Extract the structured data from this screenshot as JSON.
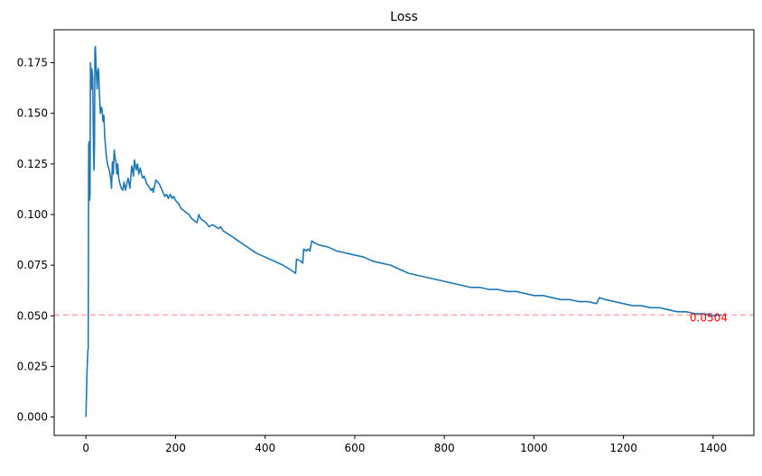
{
  "chart_data": {
    "type": "line",
    "title": "Loss",
    "xlabel": "",
    "ylabel": "",
    "xlim": [
      -71,
      1491
    ],
    "ylim": [
      -0.0091,
      0.1913
    ],
    "x_ticks": [
      0,
      200,
      400,
      600,
      800,
      1000,
      1200,
      1400
    ],
    "y_ticks": [
      0.0,
      0.025,
      0.05,
      0.075,
      0.1,
      0.125,
      0.15,
      0.175
    ],
    "grid": false,
    "legend": "none",
    "series": [
      {
        "color": "#1f77b4",
        "points": [
          [
            0,
            0.0
          ],
          [
            2,
            0.02
          ],
          [
            4,
            0.032
          ],
          [
            5,
            0.034
          ],
          [
            6,
            0.134
          ],
          [
            7,
            0.136
          ],
          [
            8,
            0.107
          ],
          [
            9,
            0.11
          ],
          [
            10,
            0.175
          ],
          [
            12,
            0.162
          ],
          [
            13,
            0.172
          ],
          [
            15,
            0.168
          ],
          [
            17,
            0.13
          ],
          [
            18,
            0.122
          ],
          [
            19,
            0.135
          ],
          [
            20,
            0.182
          ],
          [
            21,
            0.183
          ],
          [
            23,
            0.171
          ],
          [
            25,
            0.162
          ],
          [
            26,
            0.17
          ],
          [
            28,
            0.172
          ],
          [
            30,
            0.16
          ],
          [
            32,
            0.15
          ],
          [
            34,
            0.153
          ],
          [
            36,
            0.152
          ],
          [
            38,
            0.146
          ],
          [
            40,
            0.149
          ],
          [
            42,
            0.138
          ],
          [
            45,
            0.13
          ],
          [
            48,
            0.125
          ],
          [
            52,
            0.122
          ],
          [
            55,
            0.118
          ],
          [
            57,
            0.113
          ],
          [
            59,
            0.126
          ],
          [
            61,
            0.12
          ],
          [
            63,
            0.132
          ],
          [
            65,
            0.128
          ],
          [
            67,
            0.126
          ],
          [
            69,
            0.12
          ],
          [
            71,
            0.125
          ],
          [
            73,
            0.118
          ],
          [
            76,
            0.115
          ],
          [
            79,
            0.113
          ],
          [
            82,
            0.112
          ],
          [
            85,
            0.116
          ],
          [
            88,
            0.112
          ],
          [
            91,
            0.115
          ],
          [
            94,
            0.118
          ],
          [
            96,
            0.116
          ],
          [
            98,
            0.113
          ],
          [
            100,
            0.118
          ],
          [
            102,
            0.124
          ],
          [
            104,
            0.122
          ],
          [
            106,
            0.119
          ],
          [
            108,
            0.127
          ],
          [
            110,
            0.125
          ],
          [
            112,
            0.122
          ],
          [
            115,
            0.125
          ],
          [
            118,
            0.12
          ],
          [
            121,
            0.123
          ],
          [
            124,
            0.12
          ],
          [
            127,
            0.118
          ],
          [
            130,
            0.119
          ],
          [
            133,
            0.117
          ],
          [
            136,
            0.115
          ],
          [
            140,
            0.114
          ],
          [
            145,
            0.112
          ],
          [
            148,
            0.113
          ],
          [
            150,
            0.111
          ],
          [
            153,
            0.114
          ],
          [
            156,
            0.117
          ],
          [
            160,
            0.116
          ],
          [
            164,
            0.115
          ],
          [
            168,
            0.113
          ],
          [
            172,
            0.111
          ],
          [
            176,
            0.109
          ],
          [
            180,
            0.11
          ],
          [
            184,
            0.108
          ],
          [
            188,
            0.11
          ],
          [
            192,
            0.108
          ],
          [
            196,
            0.109
          ],
          [
            200,
            0.107
          ],
          [
            204,
            0.106
          ],
          [
            208,
            0.105
          ],
          [
            212,
            0.103
          ],
          [
            218,
            0.102
          ],
          [
            224,
            0.101
          ],
          [
            230,
            0.1
          ],
          [
            236,
            0.098
          ],
          [
            242,
            0.097
          ],
          [
            248,
            0.096
          ],
          [
            252,
            0.1
          ],
          [
            256,
            0.098
          ],
          [
            262,
            0.097
          ],
          [
            268,
            0.096
          ],
          [
            275,
            0.094
          ],
          [
            282,
            0.095
          ],
          [
            290,
            0.094
          ],
          [
            296,
            0.093
          ],
          [
            300,
            0.094
          ],
          [
            306,
            0.092
          ],
          [
            320,
            0.09
          ],
          [
            340,
            0.087
          ],
          [
            360,
            0.084
          ],
          [
            380,
            0.081
          ],
          [
            400,
            0.079
          ],
          [
            420,
            0.077
          ],
          [
            440,
            0.075
          ],
          [
            455,
            0.073
          ],
          [
            468,
            0.071
          ],
          [
            470,
            0.078
          ],
          [
            480,
            0.077
          ],
          [
            484,
            0.076
          ],
          [
            486,
            0.083
          ],
          [
            492,
            0.082
          ],
          [
            496,
            0.083
          ],
          [
            500,
            0.082
          ],
          [
            504,
            0.087
          ],
          [
            510,
            0.086
          ],
          [
            520,
            0.085
          ],
          [
            540,
            0.084
          ],
          [
            560,
            0.082
          ],
          [
            580,
            0.081
          ],
          [
            600,
            0.08
          ],
          [
            620,
            0.079
          ],
          [
            640,
            0.077
          ],
          [
            660,
            0.076
          ],
          [
            680,
            0.075
          ],
          [
            700,
            0.073
          ],
          [
            720,
            0.071
          ],
          [
            740,
            0.07
          ],
          [
            760,
            0.069
          ],
          [
            780,
            0.068
          ],
          [
            800,
            0.067
          ],
          [
            820,
            0.066
          ],
          [
            840,
            0.065
          ],
          [
            860,
            0.064
          ],
          [
            880,
            0.064
          ],
          [
            900,
            0.063
          ],
          [
            920,
            0.063
          ],
          [
            940,
            0.062
          ],
          [
            960,
            0.062
          ],
          [
            980,
            0.061
          ],
          [
            1000,
            0.06
          ],
          [
            1020,
            0.06
          ],
          [
            1040,
            0.059
          ],
          [
            1060,
            0.058
          ],
          [
            1080,
            0.058
          ],
          [
            1100,
            0.057
          ],
          [
            1120,
            0.057
          ],
          [
            1140,
            0.056
          ],
          [
            1146,
            0.059
          ],
          [
            1160,
            0.058
          ],
          [
            1180,
            0.057
          ],
          [
            1200,
            0.056
          ],
          [
            1220,
            0.055
          ],
          [
            1240,
            0.055
          ],
          [
            1260,
            0.054
          ],
          [
            1280,
            0.054
          ],
          [
            1300,
            0.053
          ],
          [
            1320,
            0.052
          ],
          [
            1340,
            0.052
          ],
          [
            1360,
            0.051
          ],
          [
            1380,
            0.051
          ],
          [
            1400,
            0.05
          ],
          [
            1420,
            0.0504
          ]
        ]
      }
    ],
    "reference_line": {
      "y": 0.0504,
      "color": "#ff0000",
      "style": "dashed"
    },
    "annotation": {
      "text": "0.0504",
      "x": 1390,
      "y": 0.0504,
      "color": "#ff0000"
    }
  }
}
